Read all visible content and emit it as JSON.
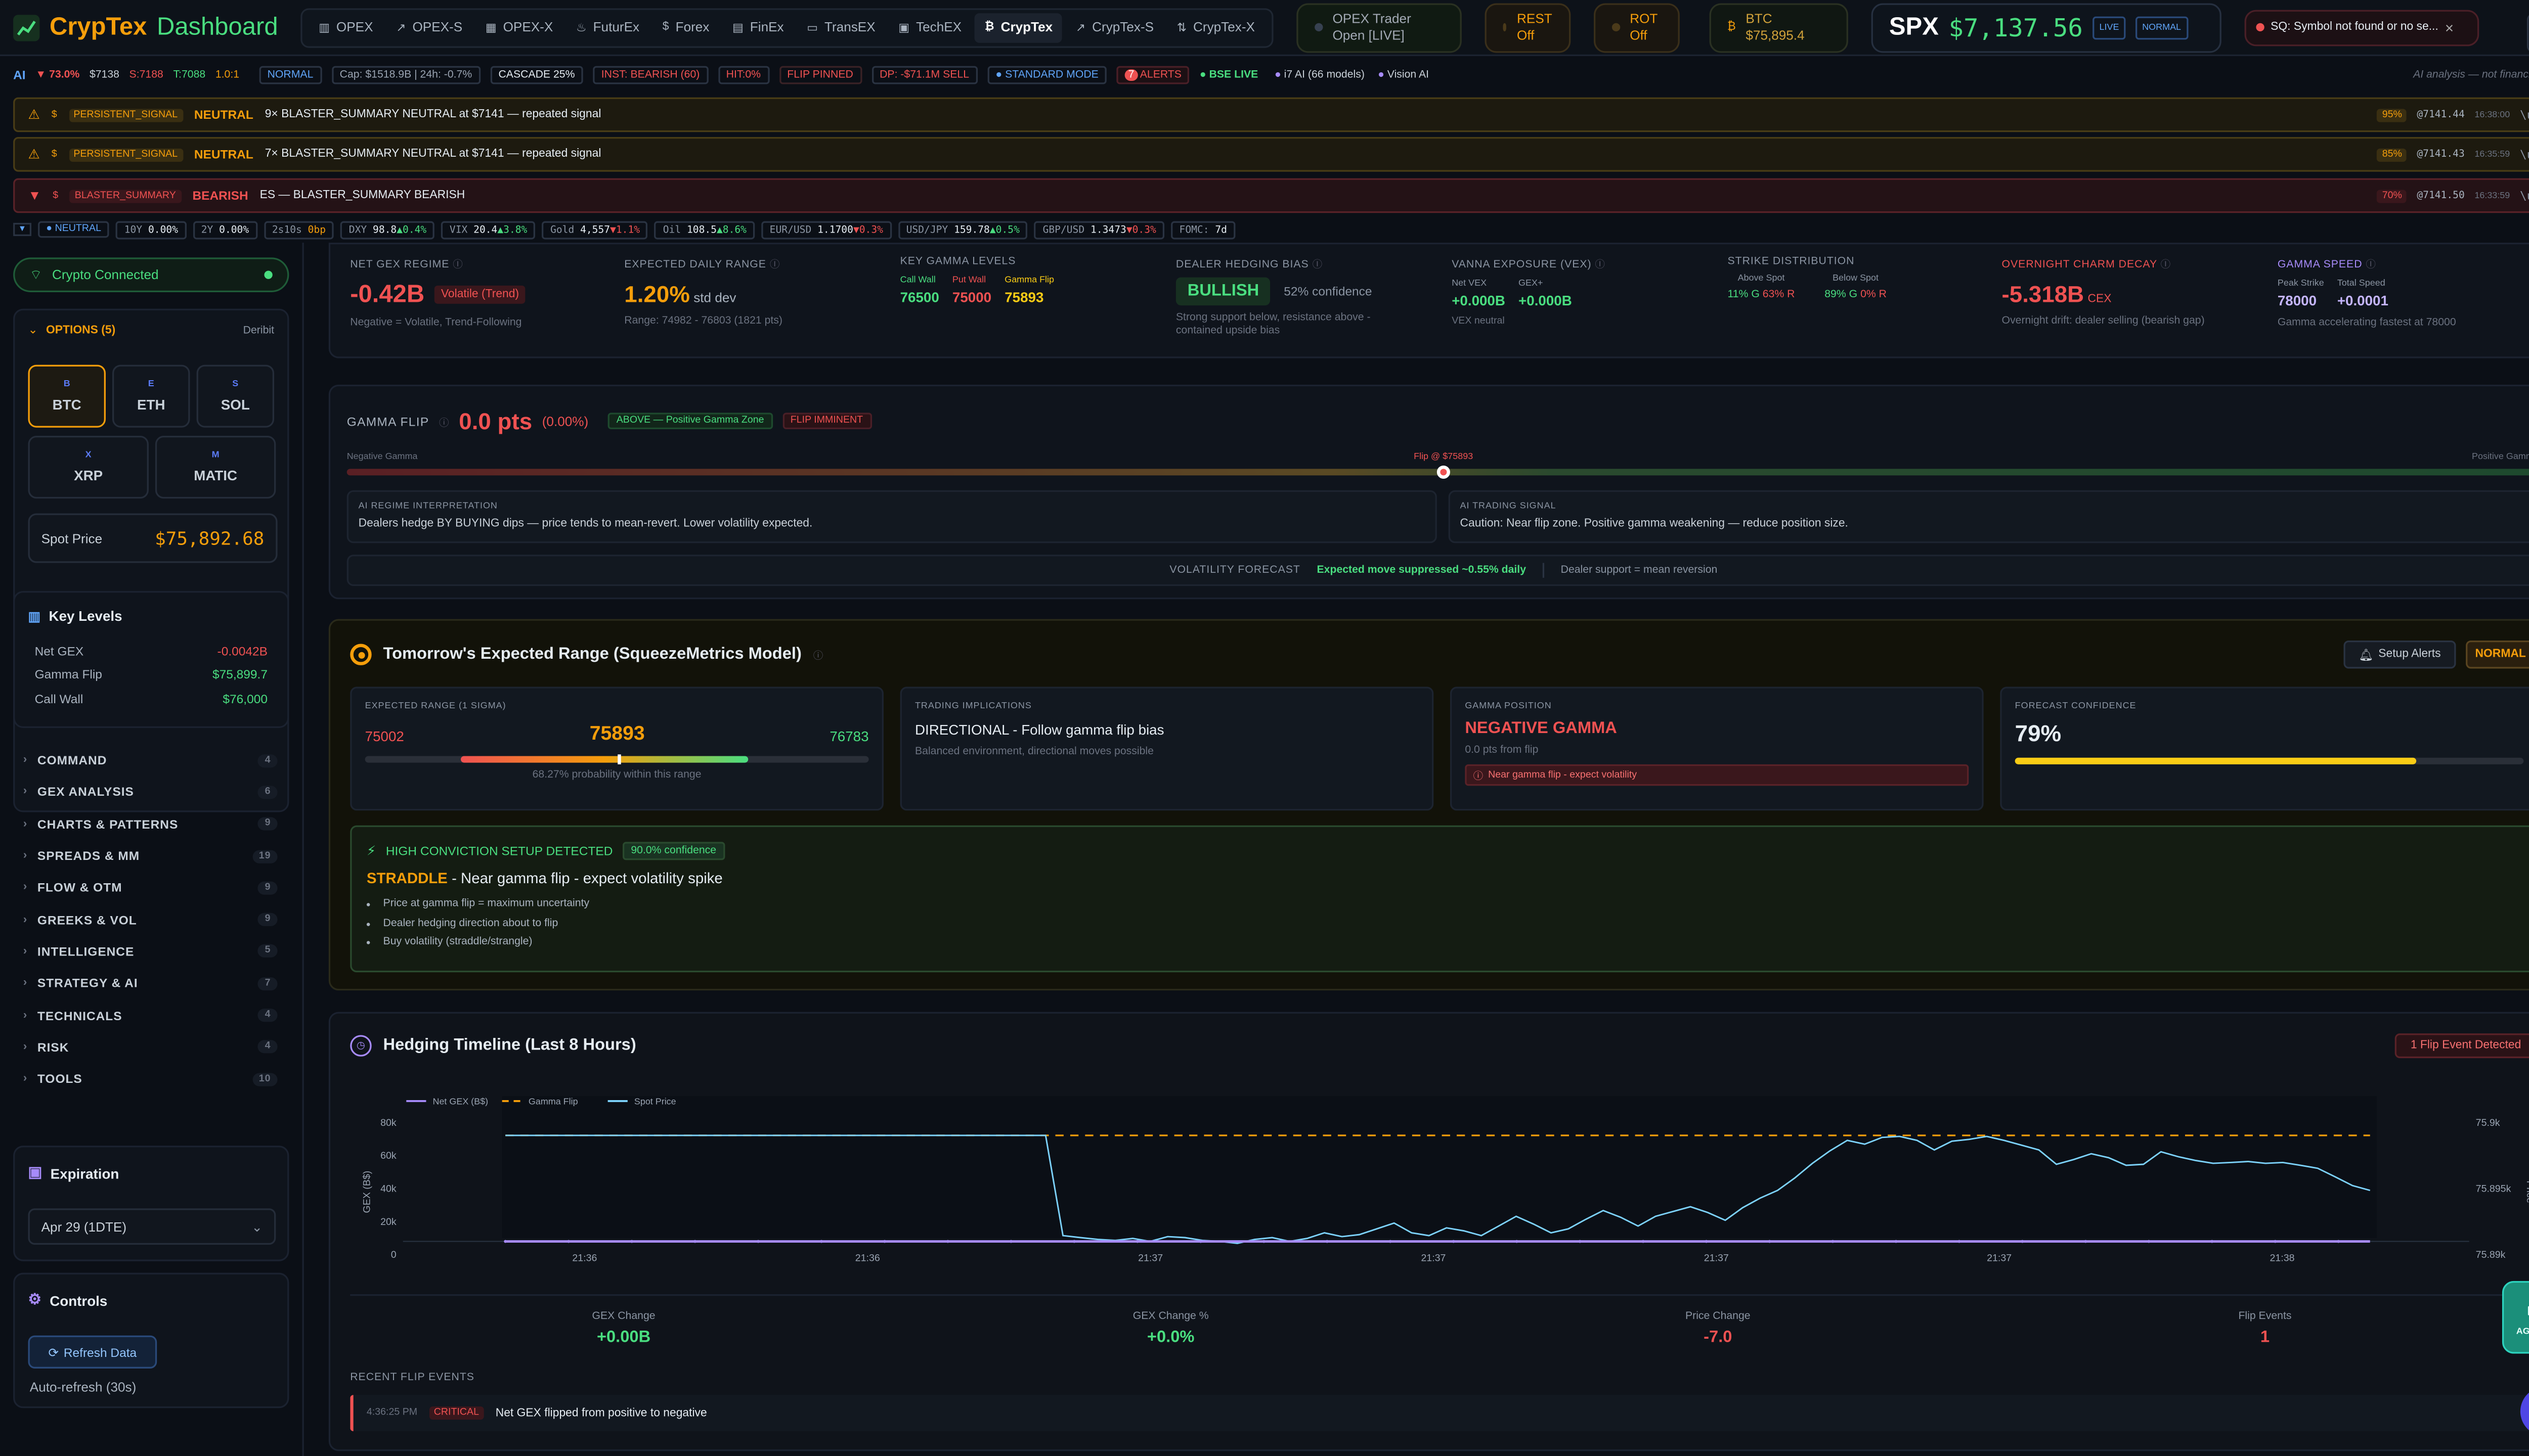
{
  "app": {
    "title_a": "CrypTex",
    "title_b": "Dashboard"
  },
  "nav": {
    "items": [
      {
        "label": "OPEX",
        "icon": "bar-chart-icon"
      },
      {
        "label": "OPEX-S",
        "icon": "trend-icon"
      },
      {
        "label": "OPEX-X",
        "icon": "grid-icon"
      },
      {
        "label": "FuturEx",
        "icon": "flame-icon"
      },
      {
        "label": "Forex",
        "icon": "dollar-icon"
      },
      {
        "label": "FinEx",
        "icon": "bank-icon"
      },
      {
        "label": "TransEX",
        "icon": "truck-icon"
      },
      {
        "label": "TechEX",
        "icon": "chip-icon"
      },
      {
        "label": "CrypTex",
        "icon": "bitcoin-icon"
      },
      {
        "label": "CrypTex-S",
        "icon": "trend-icon"
      },
      {
        "label": "CrypTex-X",
        "icon": "swap-icon"
      }
    ],
    "active": "CrypTex"
  },
  "status": {
    "opex_trader": {
      "line1": "OPEX Trader",
      "line2": "Open [LIVE]"
    },
    "rest": {
      "line1": "REST",
      "line2": "Off"
    },
    "rot": {
      "line1": "ROT",
      "line2": "Off"
    },
    "btc": {
      "line1": "BTC",
      "line2": "$75,895.4"
    },
    "spx": {
      "label": "SPX",
      "value": "$7,137.56",
      "badge1": "LIVE",
      "badge2": "NORMAL"
    },
    "error": "SQ: Symbol not found or no se..."
  },
  "ai_strip": {
    "ai": "AI",
    "pct": "73.0%",
    "price": "$7138",
    "s": "S:7188",
    "t": "T:7088",
    "ratio": "1.0:1",
    "mode": "NORMAL",
    "cap": "Cap: $1518.9B | 24h: -0.7%",
    "cascade": "CASCADE 25%",
    "inst": "INST: BEARISH (60)",
    "hit": "HIT:0%",
    "flip": "FLIP PINNED",
    "dp": "DP: -$71.1M SELL",
    "standard": "STANDARD MODE",
    "alerts_count": "7",
    "alerts": "ALERTS",
    "bse": "BSE LIVE",
    "i7": "i7 AI (66 models)",
    "vision": "Vision AI",
    "disclaimer": "AI analysis — not financial advice"
  },
  "alerts": [
    {
      "type": "PERSISTENT_SIGNAL",
      "sentiment": "NEUTRAL",
      "text": "9× BLASTER_SUMMARY NEUTRAL at $7141 — repeated signal",
      "pct": "95%",
      "price": "@7141.44",
      "time": "16:38:00",
      "close": "\\u00D7"
    },
    {
      "type": "PERSISTENT_SIGNAL",
      "sentiment": "NEUTRAL",
      "text": "7× BLASTER_SUMMARY NEUTRAL at $7141 — repeated signal",
      "pct": "85%",
      "price": "@7141.43",
      "time": "16:35:59",
      "close": "\\u00D7"
    },
    {
      "type": "BLASTER_SUMMARY",
      "sentiment": "BEARISH",
      "text": "ES — BLASTER_SUMMARY BEARISH",
      "pct": "70%",
      "price": "@7141.50",
      "time": "16:33:59",
      "close": "\\u00D7"
    }
  ],
  "ticker": {
    "neutral": "NEUTRAL",
    "items": [
      {
        "k": "10Y",
        "v": "0.00%",
        "c": "",
        "dir": ""
      },
      {
        "k": "2Y",
        "v": "0.00%",
        "c": "",
        "dir": ""
      },
      {
        "k": "2s10s",
        "v": "0bp",
        "c": "",
        "dir": ""
      },
      {
        "k": "DXY",
        "v": "98.8",
        "c": "▲0.4%",
        "dir": "up"
      },
      {
        "k": "VIX",
        "v": "20.4",
        "c": "▲3.8%",
        "dir": "up"
      },
      {
        "k": "Gold",
        "v": "4,557",
        "c": "▼1.1%",
        "dir": "down"
      },
      {
        "k": "Oil",
        "v": "108.5",
        "c": "▲8.6%",
        "dir": "up"
      },
      {
        "k": "EUR/USD",
        "v": "1.1700",
        "c": "▼0.3%",
        "dir": "down"
      },
      {
        "k": "USD/JPY",
        "v": "159.78",
        "c": "▲0.5%",
        "dir": "up"
      },
      {
        "k": "GBP/USD",
        "v": "1.3473",
        "c": "▼0.3%",
        "dir": "down"
      },
      {
        "k": "FOMC:",
        "v": "7d",
        "c": "",
        "dir": ""
      }
    ]
  },
  "sidebar": {
    "connected": "Crypto Connected",
    "options_title": "OPTIONS (5)",
    "options_source": "Deribit",
    "coins": [
      {
        "sym": "B",
        "name": "BTC"
      },
      {
        "sym": "E",
        "name": "ETH"
      },
      {
        "sym": "S",
        "name": "SOL"
      },
      {
        "sym": "X",
        "name": "XRP"
      },
      {
        "sym": "M",
        "name": "MATIC"
      }
    ],
    "spot_label": "Spot Price",
    "spot_value": "$75,892.68",
    "key_levels_title": "Key Levels",
    "key_levels": [
      {
        "k": "Net GEX",
        "v": "-0.0042B"
      },
      {
        "k": "Gamma Flip",
        "v": "$75,899.7"
      },
      {
        "k": "Call Wall",
        "v": "$76,000"
      }
    ],
    "sections": [
      {
        "label": "COMMAND",
        "count": "4"
      },
      {
        "label": "GEX ANALYSIS",
        "count": "6"
      },
      {
        "label": "CHARTS & PATTERNS",
        "count": "9"
      },
      {
        "label": "SPREADS & MM",
        "count": "19"
      },
      {
        "label": "FLOW & OTM",
        "count": "9"
      },
      {
        "label": "GREEKS & VOL",
        "count": "9"
      },
      {
        "label": "INTELLIGENCE",
        "count": "5"
      },
      {
        "label": "STRATEGY & AI",
        "count": "7"
      },
      {
        "label": "TECHNICALS",
        "count": "4"
      },
      {
        "label": "RISK",
        "count": "4"
      },
      {
        "label": "TOOLS",
        "count": "10"
      }
    ],
    "expiration_title": "Expiration",
    "expiration_value": "Apr 29 (1DTE)",
    "controls_title": "Controls",
    "refresh": "Refresh Data",
    "autorefresh": "Auto-refresh (30s)"
  },
  "metrics": {
    "net_gex": {
      "label": "NET GEX REGIME",
      "value": "-0.42B",
      "badge": "Volatile (Trend)",
      "sub": "Negative = Volatile, Trend-Following"
    },
    "range": {
      "label": "EXPECTED DAILY RANGE",
      "value": "1.20%",
      "unit": "std dev",
      "sub": "Range: 74982 - 76803 (1821 pts)"
    },
    "levels": {
      "label": "KEY GAMMA LEVELS",
      "call_wall_l": "Call Wall",
      "call_wall": "76500",
      "put_wall_l": "Put Wall",
      "put_wall": "75000",
      "flip_l": "Gamma Flip",
      "flip": "75893"
    },
    "hedging": {
      "label": "DEALER HEDGING BIAS",
      "value": "BULLISH",
      "conf": "52% confidence",
      "sub1": "Strong support below, resistance above -",
      "sub2": "contained upside bias"
    },
    "vanna": {
      "label": "VANNA EXPOSURE (VEX)",
      "k1": "Net VEX",
      "v1": "+0.000B",
      "k2": "GEX+",
      "v2": "+0.000B",
      "sub": "VEX neutral"
    },
    "strikes": {
      "label": "STRIKE DISTRIBUTION",
      "above": "Above Spot",
      "below": "Below Spot",
      "a_g": "11% G",
      "a_r": "63% R",
      "b_g": "89% G",
      "b_r": "0% R"
    },
    "charm": {
      "label": "OVERNIGHT CHARM DECAY",
      "value": "-5.318B",
      "unit": "CEX",
      "sub": "Overnight drift: dealer selling (bearish gap)"
    },
    "speed": {
      "label": "GAMMA SPEED",
      "k1": "Peak Strike",
      "v1": "78000",
      "k2": "Total Speed",
      "v2": "+0.0001",
      "sub": "Gamma accelerating fastest at 78000"
    }
  },
  "gamma_flip": {
    "title": "GAMMA FLIP",
    "value": "0.0 pts",
    "pct": "(0.00%)",
    "badge1": "ABOVE — Positive Gamma Zone",
    "badge2": "FLIP IMMINENT",
    "neg": "Negative Gamma",
    "flip_label": "Flip @ $75893",
    "pos": "Positive Gamma",
    "marker_fraction": 0.5,
    "interp_title": "AI REGIME INTERPRETATION",
    "interp": "Dealers hedge BY BUYING dips — price tends to mean-revert. Lower volatility expected.",
    "signal_title": "AI TRADING SIGNAL",
    "signal": "Caution: Near flip zone. Positive gamma weakening — reduce position size.",
    "vf_label": "VOLATILITY FORECAST",
    "vf_value": "Expected move suppressed ~0.55% daily",
    "vf_sub": "Dealer support = mean reversion"
  },
  "tomorrow": {
    "title": "Tomorrow's Expected Range (SqueezeMetrics Model)",
    "setup": "Setup Alerts",
    "badge": "NORMAL",
    "er_label": "EXPECTED RANGE (1 SIGMA)",
    "low": "75002",
    "mid": "75893",
    "high": "76783",
    "prob": "68.27% probability within this range",
    "ti_label": "TRADING IMPLICATIONS",
    "ti_value": "DIRECTIONAL - Follow gamma flip bias",
    "ti_sub": "Balanced environment, directional moves possible",
    "gp_label": "GAMMA POSITION",
    "gp_value": "NEGATIVE GAMMA",
    "gp_sub": "0.0 pts from flip",
    "gp_warn": "Near gamma flip - expect volatility",
    "fc_label": "FORECAST CONFIDENCE",
    "fc_value": "79%",
    "fc_fraction": 0.79,
    "hc_title": "HIGH CONVICTION SETUP DETECTED",
    "hc_conf": "90.0% confidence",
    "hc_strategy": "STRADDLE",
    "hc_desc": " - Near gamma flip - expect volatility spike",
    "hc_bullets": [
      "Price at gamma flip = maximum uncertainty",
      "Dealer hedging direction about to flip",
      "Buy volatility (straddle/strangle)"
    ]
  },
  "timeline": {
    "title": "Hedging Timeline (Last 8 Hours)",
    "badge": "1 Flip Event Detected",
    "stats": [
      {
        "k": "GEX Change",
        "v": "+0.00B",
        "c": "green"
      },
      {
        "k": "GEX Change %",
        "v": "+0.0%",
        "c": "green"
      },
      {
        "k": "Price Change",
        "v": "-7.0",
        "c": "red"
      },
      {
        "k": "Flip Events",
        "v": "1",
        "c": "red"
      }
    ],
    "recent_title": "RECENT FLIP EVENTS",
    "event": {
      "time": "4:36:25 PM",
      "level": "CRITICAL",
      "text": "Net GEX flipped from positive to negative"
    }
  },
  "chart_data": {
    "type": "line",
    "title": "",
    "xlabel": "",
    "ylabel": "GEX (B$)",
    "y2label": "Price",
    "legend": [
      "Net GEX (B$)",
      "Gamma Flip",
      "Spot Price"
    ],
    "legend_position": "top-left",
    "x_ticks": [
      "21:36",
      "21:36",
      "21:37",
      "21:37",
      "21:37",
      "21:37",
      "21:38"
    ],
    "y_ticks": [
      "80k",
      "60k",
      "40k",
      "20k",
      "0"
    ],
    "y2_ticks": [
      "75.9k",
      "75.895k",
      "75.89k"
    ],
    "ylim": [
      0,
      80000
    ],
    "y2lim": [
      75889,
      75901
    ],
    "grid": false,
    "series": [
      {
        "name": "Net GEX (B$)",
        "values": [
          0,
          0,
          0,
          0,
          0,
          0,
          0,
          0,
          0,
          0,
          0,
          0,
          0,
          0,
          0,
          0,
          0,
          0,
          0,
          0,
          0,
          0,
          0,
          0,
          0,
          0,
          0,
          0,
          0,
          0,
          0,
          0,
          0,
          0,
          0,
          0,
          0,
          0,
          0,
          0,
          0,
          0,
          0,
          0,
          0,
          0,
          0,
          0,
          0,
          0,
          0,
          0,
          0,
          0,
          0,
          0,
          0,
          0,
          0,
          0
        ]
      },
      {
        "name": "Gamma Flip",
        "values": [
          75900,
          75900,
          75900,
          75900,
          75900,
          75900,
          75900,
          75900,
          75900,
          75900,
          75900,
          75900,
          75900,
          75900,
          75900,
          75900,
          75900,
          75900,
          75900,
          75900,
          75900,
          75900,
          75900,
          75900,
          75900,
          75900,
          75900,
          75900,
          75900,
          75900,
          75900,
          75900,
          75900,
          75900,
          75900,
          75900,
          75900,
          75900,
          75900,
          75900,
          75900,
          75900,
          75900,
          75900,
          75900,
          75900,
          75900,
          75900,
          75900,
          75900,
          75900,
          75900,
          75900,
          75900,
          75900,
          75900,
          75900,
          75900,
          75900,
          75900
        ]
      },
      {
        "name": "Spot Price",
        "values": [
          75900,
          75900,
          75900,
          75900,
          75900,
          75900,
          75900,
          75900,
          75900,
          75900,
          75900,
          75900,
          75900,
          75900,
          75900,
          75900,
          75900,
          75900,
          75900,
          75900,
          75900,
          75900,
          75900,
          75900,
          75900,
          75900,
          75900,
          75900,
          75900,
          75900,
          75900,
          75900,
          75889.6,
          75889.4,
          75889.2,
          75889.1,
          75889.3,
          75889.0,
          75889.5,
          75889.4,
          75889.1,
          75889.0,
          75888.8,
          75889.2,
          75889.4,
          75889.0,
          75889.3,
          75889.9,
          75889.5,
          75889.7,
          75890.3,
          75890.9,
          75889.9,
          75889.6,
          75890.4,
          75890.1,
          75889.6,
          75890.6,
          75891.6,
          75890.8,
          75889.9,
          75890.3,
          75891.3,
          75892.2,
          75891.5,
          75890.6,
          75891.6,
          75892.1,
          75892.6,
          75892.0,
          75891.2,
          75892.5,
          75893.5,
          75894.3,
          75895.6,
          75897.1,
          75898.4,
          75899.5,
          75899.1,
          75899.8,
          75899.9,
          75899.5,
          75898.5,
          75899.4,
          75899.6,
          75899.9,
          75899.5,
          75899.0,
          75898.5,
          75897.0,
          75897.5,
          75898.1,
          75897.7,
          75896.9,
          75897.0,
          75898.3,
          75897.8,
          75897.4,
          75897.1,
          75897.2,
          75897.3,
          75897.1,
          75897.2,
          75896.9,
          75896.6,
          75895.7,
          75894.8,
          75894.3
        ]
      }
    ]
  },
  "floating": {
    "agents": "AGENTS"
  }
}
